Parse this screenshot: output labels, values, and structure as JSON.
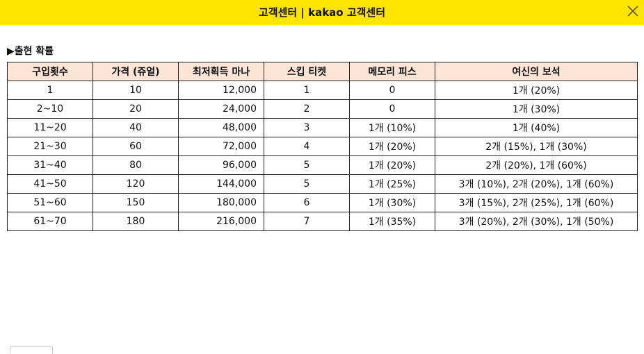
{
  "header": {
    "title": "고객센터 | kakao 고객센터",
    "close_icon": "close-icon"
  },
  "section": {
    "label": "▶출현 확률"
  },
  "table": {
    "columns": [
      "구입횟수",
      "가격 (쥬얼)",
      "최저획득 마나",
      "스킵 티켓",
      "메모리 피스",
      "여신의 보석"
    ],
    "rows": [
      [
        "1",
        "10",
        "12,000",
        "1",
        "0",
        "1개 (20%)"
      ],
      [
        "2~10",
        "20",
        "24,000",
        "2",
        "0",
        "1개 (30%)"
      ],
      [
        "11~20",
        "40",
        "48,000",
        "3",
        "1개 (10%)",
        "1개 (40%)"
      ],
      [
        "21~30",
        "60",
        "72,000",
        "4",
        "1개 (20%)",
        "2개 (15%), 1개 (30%)"
      ],
      [
        "31~40",
        "80",
        "96,000",
        "5",
        "1개 (20%)",
        "2개 (20%), 1개 (60%)"
      ],
      [
        "41~50",
        "120",
        "144,000",
        "5",
        "1개 (25%)",
        "3개 (10%), 2개 (20%), 1개 (60%)"
      ],
      [
        "51~60",
        "150",
        "180,000",
        "6",
        "1개 (30%)",
        "3개 (15%), 2개 (25%), 1개 (60%)"
      ],
      [
        "61~70",
        "180",
        "216,000",
        "7",
        "1개 (35%)",
        "3개 (20%), 2개 (30%), 1개 (50%)"
      ]
    ]
  },
  "colors": {
    "header_bg": "#fee500",
    "table_header_bg": "#fbe5d6"
  }
}
